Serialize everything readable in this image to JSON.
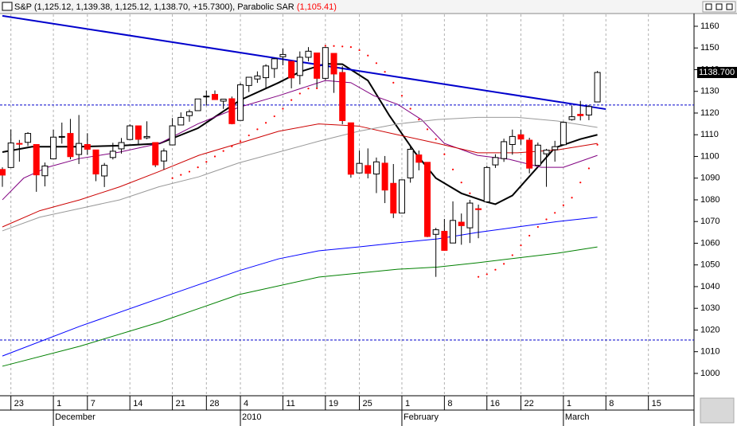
{
  "chart_data": {
    "type": "candlestick",
    "title": "S&P (1,125.12, 1,139.38, 1,125.12, 1,138.70, +15.7300), Parabolic SAR",
    "indicator_value": "(1,105.41)",
    "categories": [
      null,
      "23",
      null,
      null,
      null,
      null,
      "1",
      null,
      null,
      null,
      "7",
      null,
      null,
      null,
      null,
      "14",
      null,
      null,
      null,
      null,
      "21",
      null,
      null,
      null,
      "28",
      null,
      null,
      null,
      "4",
      null,
      null,
      null,
      null,
      "11",
      null,
      null,
      null,
      null,
      "19",
      null,
      null,
      null,
      "25",
      null,
      null,
      null,
      null,
      "1",
      null,
      null,
      null,
      null,
      "8",
      null,
      null,
      null,
      null,
      "16",
      null,
      null,
      null,
      "22",
      null,
      null,
      null,
      null,
      "1",
      null,
      null,
      null,
      null,
      "8",
      null,
      null,
      null,
      null,
      "15",
      null,
      null,
      null,
      null
    ],
    "months": [
      null,
      null,
      null,
      null,
      null,
      null,
      "December",
      null,
      null,
      null,
      null,
      null,
      null,
      null,
      null,
      null,
      null,
      null,
      null,
      null,
      null,
      null,
      null,
      null,
      null,
      null,
      null,
      null,
      "2010",
      null,
      null,
      null,
      null,
      null,
      null,
      null,
      null,
      null,
      null,
      null,
      null,
      null,
      null,
      null,
      null,
      null,
      null,
      "February",
      null,
      null,
      null,
      null,
      null,
      null,
      null,
      null,
      null,
      null,
      null,
      null,
      null,
      null,
      null,
      null,
      null,
      null,
      "March",
      null,
      null,
      null,
      null,
      null,
      null,
      null,
      null,
      null,
      null,
      null,
      null,
      null,
      null,
      null
    ],
    "open": [
      1094,
      1094.9,
      1106,
      1106.5,
      1105.5,
      1091.1,
      1098.9,
      1109,
      1110.6,
      1100.9,
      1105.5,
      1103,
      1091,
      1099.5,
      1103.5,
      1107.8,
      1114.1,
      1108.6,
      1106.4,
      1097.9,
      1105.3,
      1114.5,
      1118.8,
      1121.1,
      1127.5,
      1128.6,
      1125.5,
      1126.6,
      1116.6,
      1132.7,
      1135.7,
      1136.3,
      1140.5,
      1145.96,
      1143.8,
      1137.3,
      1145.7,
      1147.7,
      1136,
      1147.5,
      1138.7,
      1115.5,
      1092.4,
      1095.8,
      1091.9,
      1096.9,
      1087.6,
      1073.9,
      1090.1,
      1100.7,
      1097.3,
      1064.1,
      1065.5,
      1060.1,
      1069.7,
      1067.1,
      1075.9,
      1079.1,
      1096.1,
      1099,
      1105.5,
      1110,
      1107.5,
      1095.9,
      1101.2,
      1103.1,
      1105.4,
      1117,
      1119.4,
      1119.1,
      1125.12,
      null,
      null,
      null,
      null,
      null,
      null,
      null,
      null,
      null,
      null
    ],
    "high": [
      1095,
      1112.4,
      1107.6,
      1111.2,
      1105.5,
      1097.2,
      1112.3,
      1115.6,
      1117.3,
      1119.1,
      1110.7,
      1103,
      1097,
      1106.3,
      1108.5,
      1114.8,
      1114.1,
      1116.2,
      1106.4,
      1103.7,
      1117.7,
      1120.3,
      1121.6,
      1126.5,
      1130.4,
      1130.4,
      1126.4,
      1127.6,
      1133.9,
      1136.6,
      1139.2,
      1142.5,
      1145.4,
      1149.7,
      1143.8,
      1148.4,
      1150.4,
      1147.8,
      1150.5,
      1147.5,
      1141.6,
      1115.5,
      1102.7,
      1103.7,
      1099.5,
      1100.2,
      1096.5,
      1089.4,
      1104.7,
      1102.7,
      1097.3,
      1067.1,
      1071.2,
      1079.3,
      1073.7,
      1080,
      1077.8,
      1095.7,
      1101,
      1108.2,
      1112.4,
      1112.3,
      1108.6,
      1106.4,
      1103.5,
      1107.2,
      1116.1,
      1123.5,
      1125.6,
      1123.7,
      1139.38,
      null,
      null,
      null,
      null,
      null,
      null,
      null,
      null,
      null,
      null
    ],
    "low": [
      1086,
      1094.9,
      1097.6,
      1104.8,
      1083.7,
      1086.2,
      1098.9,
      1105.9,
      1098.7,
      1096.5,
      1100.8,
      1088.6,
      1085.9,
      1098.6,
      1101.3,
      1107.8,
      1105.4,
      1107.9,
      1095.1,
      1093.9,
      1105.3,
      1114.5,
      1116,
      1121.1,
      1123.5,
      1126.2,
      1121.9,
      1114.8,
      1116.6,
      1129.7,
      1133.9,
      1131.3,
      1136.2,
      1142,
      1131.4,
      1133.2,
      1143.8,
      1131.4,
      1135.2,
      1129.3,
      1114.8,
      1090.2,
      1092.4,
      1089.9,
      1083.1,
      1078.5,
      1071.6,
      1073.9,
      1087.9,
      1093.6,
      1062.8,
      1044.5,
      1056.5,
      1060.1,
      1059.3,
      1060.1,
      1062.3,
      1079.1,
      1094.7,
      1097.5,
      1100.8,
      1105.4,
      1092.2,
      1095.9,
      1086,
      1097.6,
      1105.4,
      1116.5,
      1116.6,
      1116.7,
      1125.12,
      null,
      null,
      null,
      null,
      null,
      null,
      null,
      null,
      null,
      null
    ],
    "close": [
      1091.4,
      1106.2,
      1105.7,
      1110.6,
      1091.5,
      1095.6,
      1108.9,
      1109.2,
      1099.9,
      1106,
      1103.3,
      1091.9,
      1095.9,
      1102.4,
      1106.4,
      1114.1,
      1107.9,
      1109.2,
      1096.1,
      1102.5,
      1114.1,
      1118,
      1120.6,
      1126.5,
      1127.8,
      1126.2,
      1126.4,
      1115.1,
      1133,
      1136.5,
      1137.1,
      1141.7,
      1145,
      1147,
      1136.2,
      1145.7,
      1148.5,
      1136,
      1150.2,
      1138,
      1116.5,
      1091.8,
      1096.8,
      1092.2,
      1097.5,
      1084.5,
      1073.9,
      1089.2,
      1103.3,
      1097.3,
      1063.1,
      1066.2,
      1056.7,
      1070.5,
      1068.1,
      1078.5,
      1075.5,
      1094.9,
      1099.5,
      1106.8,
      1109.2,
      1108,
      1094.6,
      1105.2,
      1102.9,
      1104.5,
      1115.7,
      1118.3,
      1118.8,
      1123,
      1138.7,
      null,
      null,
      null,
      null,
      null,
      null,
      null,
      null,
      null,
      null
    ],
    "up_color": "#ffffff",
    "down_color": "#ff0000",
    "lines": [
      {
        "color": "#000000",
        "x": [
          0,
          3.5,
          9,
          14,
          18.5,
          23,
          28,
          32.5,
          35,
          38,
          40,
          43,
          45.5,
          48.5,
          51,
          54,
          57,
          58,
          60,
          62.5,
          65,
          68,
          70
        ],
        "values": [
          1102,
          1104.5,
          1104.5,
          1105,
          1106,
          1113,
          1126,
          1134,
          1139,
          1142.7,
          1142.5,
          1135,
          1119,
          1102,
          1090,
          1083,
          1079,
          1078,
          1082,
          1093,
          1104,
          1108,
          1110
        ]
      },
      {
        "color": "#800080",
        "x": [
          0,
          2.5,
          5.3,
          9,
          13.8,
          18.5,
          23,
          27.8,
          32.5,
          38,
          41,
          43.7,
          46.5,
          49.3,
          52,
          55.9,
          59.6,
          63.4,
          66,
          70
        ],
        "values": [
          1080,
          1090,
          1095,
          1099,
          1102,
          1106,
          1115,
          1122.6,
          1128,
          1135,
          1134,
          1128,
          1124,
          1117,
          1106,
          1100.5,
          1098.7,
          1095,
          1095,
          1100.5
        ]
      },
      {
        "color": "#cc0000",
        "x": [
          0,
          4.4,
          9.1,
          13.8,
          18.4,
          23.1,
          27.8,
          32.5,
          37.2,
          41.9,
          46.5,
          51.2,
          55.9,
          60.6,
          65.3,
          70
        ],
        "values": [
          1067.5,
          1075,
          1080,
          1086,
          1093,
          1100.5,
          1106,
          1111.6,
          1115,
          1114,
          1110,
          1106,
          1101.7,
          1101.7,
          1103,
          1106
        ]
      },
      {
        "color": "#999999",
        "x": [
          0,
          4.4,
          9.1,
          13.8,
          18.4,
          23.1,
          27.8,
          32.5,
          37.2,
          41.9,
          46.5,
          51.2,
          55.9,
          60.6,
          65.3,
          70
        ],
        "values": [
          1065.7,
          1072,
          1076,
          1080,
          1086,
          1090.6,
          1097,
          1102,
          1107,
          1111.6,
          1115,
          1117,
          1118,
          1118,
          1116.3,
          1113.4
        ]
      },
      {
        "color": "#0000ff",
        "x": [
          0,
          9.1,
          18.4,
          27.8,
          32.5,
          37.2,
          41.9,
          46.5,
          51.2,
          55.9,
          60.6,
          65.3,
          70
        ],
        "values": [
          1008,
          1021.7,
          1034.5,
          1047.3,
          1052.8,
          1056.5,
          1058.3,
          1060.2,
          1062,
          1065,
          1067.5,
          1070,
          1072
        ]
      },
      {
        "color": "#008000",
        "x": [
          0,
          9.1,
          18.4,
          27.8,
          37.2,
          46.5,
          51.2,
          55.9,
          65.3,
          70
        ],
        "values": [
          1003.3,
          1012.5,
          1023.5,
          1036.3,
          1044.4,
          1048,
          1049,
          1051,
          1055.4,
          1058.3
        ]
      }
    ],
    "trendline": {
      "color": "#0000cc",
      "x": [
        0,
        71
      ],
      "values": [
        1164.8,
        1121.8
      ]
    },
    "hlines": {
      "color": "#0000cc",
      "values": [
        1123.7,
        1015.4
      ]
    },
    "sar": {
      "color": "#ff0000",
      "x": [
        20,
        21,
        22,
        23,
        24,
        25,
        26,
        27,
        28,
        29,
        30,
        31,
        32,
        33,
        34,
        35,
        36,
        37,
        38,
        39,
        40,
        41,
        42,
        43,
        44,
        45,
        46,
        47,
        48,
        49,
        50,
        51,
        52,
        53,
        54,
        55,
        56,
        57,
        58,
        59,
        60,
        61,
        62,
        63,
        64,
        65,
        66,
        67,
        68,
        69,
        70
      ],
      "values": [
        1090,
        1091.5,
        1093,
        1095,
        1097.5,
        1100,
        1102.5,
        1104.6,
        1107,
        1109.7,
        1112.5,
        1115.5,
        1118.5,
        1122,
        1126,
        1129,
        1131.3,
        1131.4,
        1151,
        1150.9,
        1150.7,
        1150.4,
        1149,
        1146.5,
        1143,
        1139,
        1134,
        1128,
        1122,
        1117,
        1112.5,
        1108,
        1101,
        1094,
        1088,
        1083,
        1044.5,
        1045.7,
        1047.8,
        1050.5,
        1054.5,
        1059,
        1063.5,
        1067.5,
        1071,
        1074,
        1077.5,
        1081,
        1088,
        1094.5,
        1105.41
      ]
    },
    "last_price": {
      "value": 1138.7,
      "label": "1138.700"
    },
    "ylim": [
      989.7,
      1165.5
    ],
    "yticks": [
      1000,
      1010,
      1020,
      1030,
      1040,
      1050,
      1060,
      1070,
      1080,
      1090,
      1100,
      1110,
      1120,
      1130,
      1140,
      1150,
      1160
    ],
    "grid": "x"
  }
}
